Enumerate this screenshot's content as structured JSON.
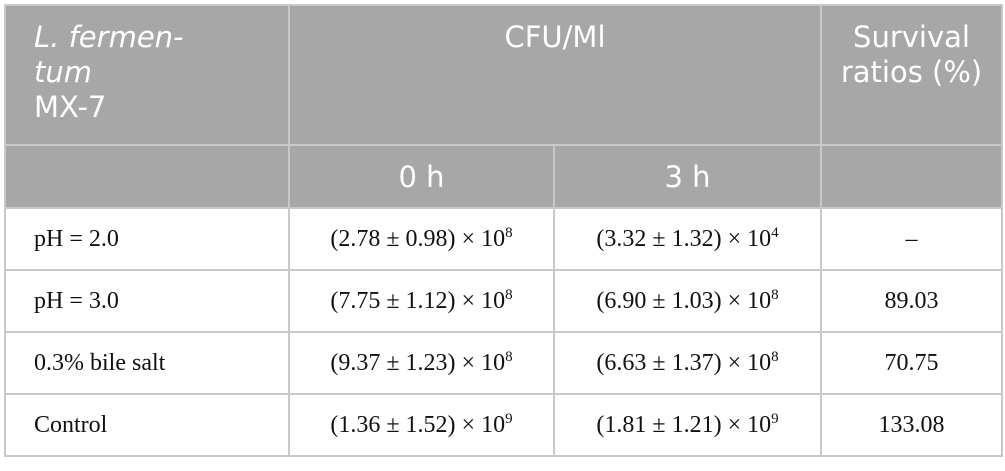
{
  "table": {
    "header": {
      "species_lines": [
        "L. fermen-",
        "tum"
      ],
      "strain": "MX-7",
      "group": "CFU/Ml",
      "survival": "Survival ratios (%)",
      "sub": [
        "0 h",
        "3 h"
      ]
    },
    "rows": [
      {
        "label": "pH = 2.0",
        "h0": {
          "base": "(2.78 ± 0.98) × 10",
          "exp": "8"
        },
        "h3": {
          "base": "(3.32 ± 1.32) × 10",
          "exp": "4"
        },
        "ratio": "–"
      },
      {
        "label": "pH = 3.0",
        "h0": {
          "base": "(7.75 ± 1.12) × 10",
          "exp": "8"
        },
        "h3": {
          "base": "(6.90 ± 1.03) × 10",
          "exp": "8"
        },
        "ratio": "89.03"
      },
      {
        "label": "0.3% bile salt",
        "h0": {
          "base": "(9.37 ± 1.23) × 10",
          "exp": "8"
        },
        "h3": {
          "base": "(6.63 ± 1.37) × 10",
          "exp": "8"
        },
        "ratio": "70.75"
      },
      {
        "label": "Control",
        "h0": {
          "base": "(1.36 ± 1.52) × 10",
          "exp": "9"
        },
        "h3": {
          "base": "(1.81 ± 1.21) × 10",
          "exp": "9"
        },
        "ratio": "133.08"
      }
    ]
  }
}
